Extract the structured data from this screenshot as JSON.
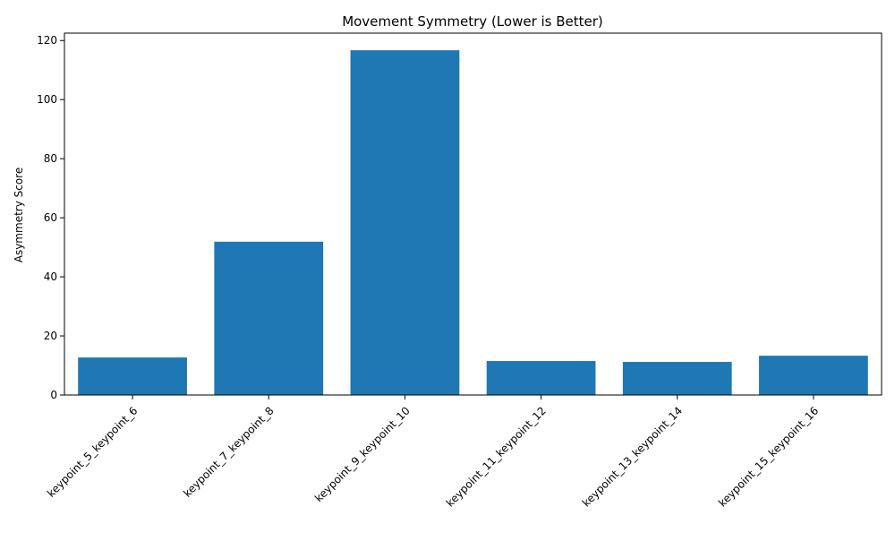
{
  "chart_data": {
    "type": "bar",
    "title": "Movement Symmetry (Lower is Better)",
    "xlabel": "",
    "ylabel": "Asymmetry Score",
    "categories": [
      "keypoint_5_keypoint_6",
      "keypoint_7_keypoint_8",
      "keypoint_9_keypoint_10",
      "keypoint_11_keypoint_12",
      "keypoint_13_keypoint_14",
      "keypoint_15_keypoint_16"
    ],
    "values": [
      12.7,
      51.9,
      116.7,
      11.5,
      11.2,
      13.3
    ],
    "ylim": [
      0,
      122.5
    ],
    "yticks": [
      0,
      20,
      40,
      60,
      80,
      100,
      120
    ],
    "bar_color": "#1f77b4",
    "grid": false,
    "legend": "none"
  }
}
